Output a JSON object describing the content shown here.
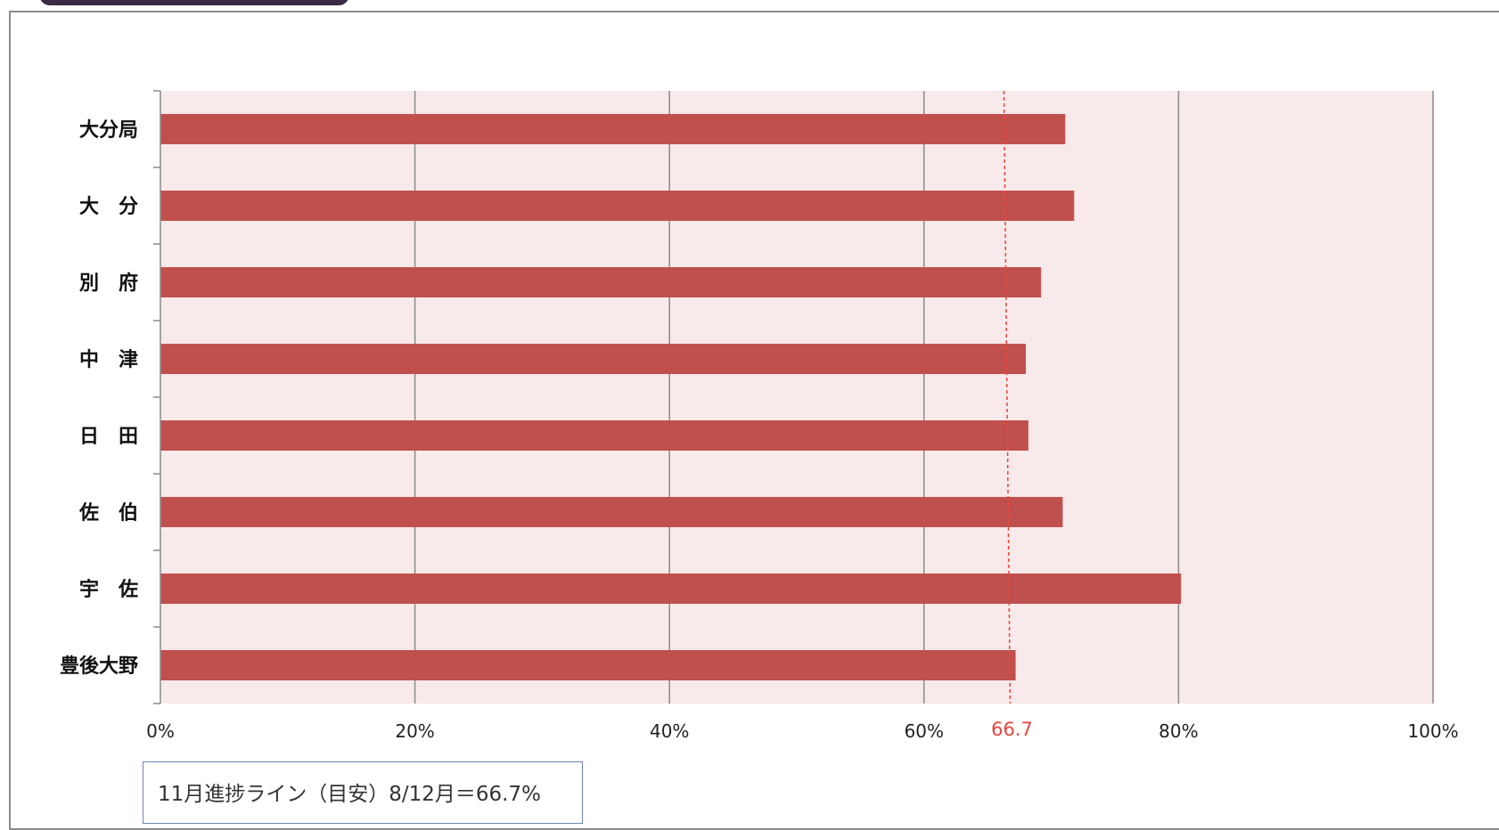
{
  "note": "11月進捗ライン（目安）8/12月＝66.7%",
  "chart_data": {
    "type": "bar",
    "orientation": "horizontal",
    "categories": [
      "大分局",
      "大　分",
      "別　府",
      "中　津",
      "日　田",
      "佐　伯",
      "宇　佐",
      "豊後大野"
    ],
    "values": [
      71.1,
      71.8,
      69.2,
      68.0,
      68.2,
      70.9,
      80.2,
      67.2
    ],
    "xlim": [
      0,
      100
    ],
    "xticks": [
      0,
      20,
      40,
      60,
      80,
      100
    ],
    "xtick_labels": [
      "0%",
      "20%",
      "40%",
      "60%",
      "80%",
      "100%"
    ],
    "reference_line": {
      "value": 66.7,
      "label": "66.7",
      "color": "#e8463c"
    },
    "grid": true,
    "bar_color": "#c0504d",
    "plot_background": "#f8e9ea",
    "title": "",
    "xlabel": "",
    "ylabel": ""
  }
}
